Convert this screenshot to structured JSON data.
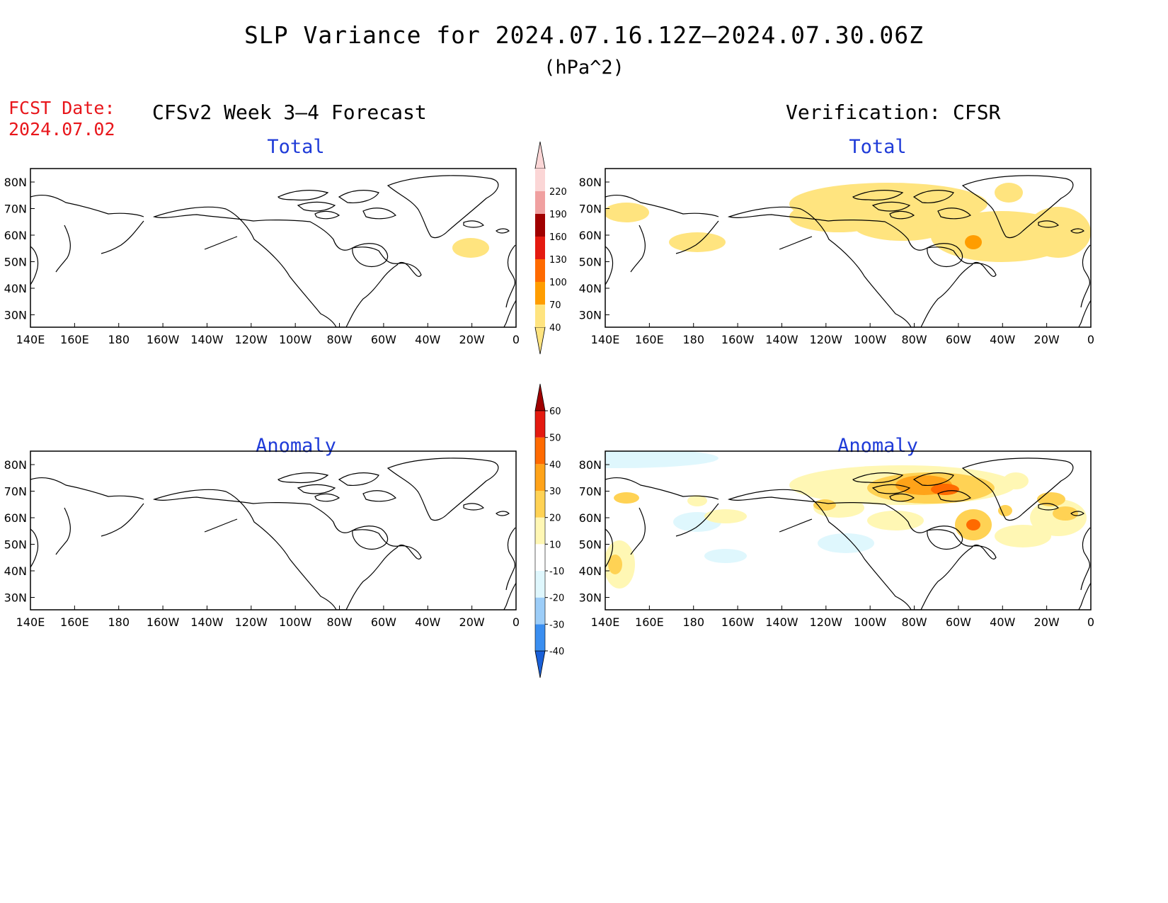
{
  "header": {
    "title": "SLP Variance for 2024.07.16.12Z–2024.07.30.06Z",
    "units": "(hPa^2)",
    "fcst_label": "FCST Date:",
    "fcst_date": "2024.07.02",
    "left_column": "CFSv2 Week 3–4 Forecast",
    "right_column": "Verification: CFSR"
  },
  "panels": [
    {
      "id": "forecast-total",
      "subtitle": "Total"
    },
    {
      "id": "verification-total",
      "subtitle": "Total"
    },
    {
      "id": "forecast-anomaly",
      "subtitle": "Anomaly"
    },
    {
      "id": "verification-anomaly",
      "subtitle": "Anomaly"
    }
  ],
  "axes": {
    "lon_ticks": [
      "140E",
      "160E",
      "180",
      "160W",
      "140W",
      "120W",
      "100W",
      "80W",
      "60W",
      "40W",
      "20W",
      "0"
    ],
    "lat_ticks": [
      "80N",
      "70N",
      "60N",
      "50N",
      "40N",
      "30N"
    ]
  },
  "colorbars": {
    "total": {
      "levels": [
        "40",
        "70",
        "100",
        "130",
        "160",
        "190",
        "220"
      ],
      "colors": [
        "#ffe47f",
        "#ff9d00",
        "#ff6a00",
        "#e41a10",
        "#a00000",
        "#f0a0a0",
        "#fbd6d6"
      ]
    },
    "anomaly": {
      "levels": [
        "-40",
        "-30",
        "-20",
        "-10",
        "10",
        "20",
        "30",
        "40",
        "50",
        "60"
      ],
      "colors": [
        "#1a60d8",
        "#3a8ef0",
        "#9ccdf8",
        "#dff7fd",
        "#ffffff",
        "#fff7b4",
        "#ffd254",
        "#ffa319",
        "#ff6a00",
        "#e41a10",
        "#a00000"
      ]
    }
  }
}
